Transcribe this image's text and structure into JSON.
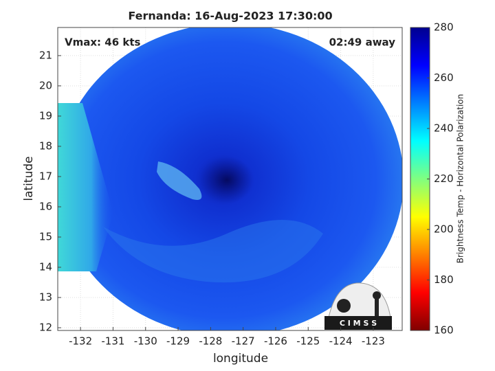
{
  "chart_data": {
    "type": "map",
    "title": "Fernanda: 16-Aug-2023 17:30:00",
    "annotations": [
      "Vmax: 46 kts",
      "02:49 away"
    ],
    "xlabel": "longitude",
    "ylabel": "latitude",
    "xlim": [
      -132.7,
      -122.11
    ],
    "ylim": [
      11.91,
      21.93
    ],
    "xticks": [
      -132,
      -131,
      -130,
      -129,
      -128,
      -127,
      -126,
      -125,
      -124,
      -123
    ],
    "yticks": [
      12,
      13,
      14,
      15,
      16,
      17,
      18,
      19,
      20,
      21
    ],
    "grid": true,
    "colorbar": {
      "label": "Brightness Temp - Horizontal Polarization",
      "lim": [
        160,
        280
      ],
      "ticks": [
        160,
        180,
        200,
        220,
        240,
        260,
        280
      ],
      "colors": [
        "#800000",
        "#ff0000",
        "#ff8000",
        "#ffff00",
        "#80ff80",
        "#00ffff",
        "#0080ff",
        "#0000ff",
        "#00008f"
      ]
    },
    "logo": "C I M S S"
  }
}
